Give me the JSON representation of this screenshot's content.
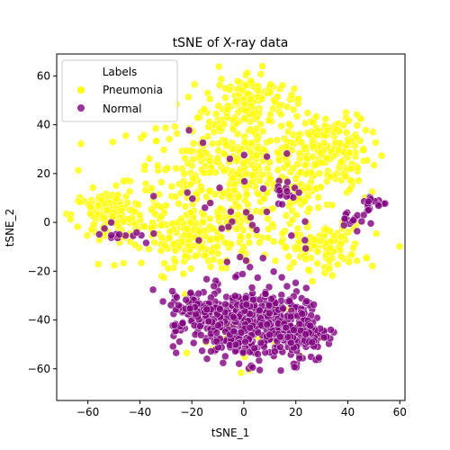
{
  "chart_data": {
    "type": "scatter",
    "title": "tSNE of X-ray data",
    "xlabel": "tSNE_1",
    "ylabel": "tSNE_2",
    "xlim": [
      -72,
      62
    ],
    "ylim": [
      -73,
      69
    ],
    "xticks": [
      -60,
      -40,
      -20,
      0,
      20,
      40,
      60
    ],
    "yticks": [
      -60,
      -40,
      -20,
      0,
      20,
      40,
      60
    ],
    "grid": false,
    "legend": {
      "title": "Labels",
      "placement": "top-left",
      "entries": [
        "Pneumonia",
        "Normal"
      ]
    },
    "series": [
      {
        "name": "Pneumonia",
        "color": "#ffff00",
        "clusters": [
          {
            "cx": 0,
            "cy": 18,
            "rx": 44,
            "ry": 28,
            "n": 520
          },
          {
            "cx": -52,
            "cy": 3,
            "rx": 14,
            "ry": 10,
            "n": 120
          },
          {
            "cx": 2,
            "cy": 50,
            "rx": 16,
            "ry": 12,
            "n": 120
          },
          {
            "cx": 33,
            "cy": 30,
            "rx": 15,
            "ry": 14,
            "n": 140
          },
          {
            "cx": 30,
            "cy": -10,
            "rx": 16,
            "ry": 9,
            "n": 110
          },
          {
            "cx": -18,
            "cy": -8,
            "rx": 20,
            "ry": 10,
            "n": 140
          },
          {
            "cx": 0,
            "cy": -45,
            "rx": 22,
            "ry": 14,
            "n": 35
          }
        ]
      },
      {
        "name": "Normal",
        "color": "#800080",
        "clusters": [
          {
            "cx": 2,
            "cy": -42,
            "rx": 22,
            "ry": 15,
            "n": 420
          },
          {
            "cx": 22,
            "cy": -45,
            "rx": 10,
            "ry": 12,
            "n": 120
          },
          {
            "cx": -18,
            "cy": -36,
            "rx": 10,
            "ry": 8,
            "n": 100
          },
          {
            "cx": 50,
            "cy": 8,
            "rx": 5,
            "ry": 3,
            "n": 22
          },
          {
            "cx": 42,
            "cy": 2,
            "rx": 5,
            "ry": 6,
            "n": 16
          },
          {
            "cx": -48,
            "cy": -5,
            "rx": 12,
            "ry": 4,
            "n": 14
          },
          {
            "cx": 0,
            "cy": 5,
            "rx": 30,
            "ry": 30,
            "n": 40
          },
          {
            "cx": 15,
            "cy": 12,
            "rx": 6,
            "ry": 6,
            "n": 12
          }
        ]
      }
    ]
  }
}
